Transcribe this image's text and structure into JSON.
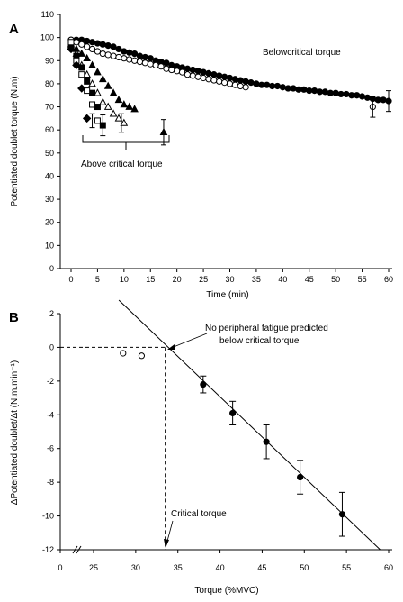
{
  "chart_data": [
    {
      "panel": "A",
      "type": "scatter",
      "title": "",
      "xlabel": "Time (min)",
      "ylabel": "Potentiated doublet torque (N.m)",
      "xlim": [
        0,
        60
      ],
      "ylim": [
        0,
        110
      ],
      "xticks": [
        "0",
        "5",
        "10",
        "15",
        "20",
        "25",
        "30",
        "35",
        "40",
        "45",
        "50",
        "55",
        "60"
      ],
      "yticks": [
        "0",
        "10",
        "20",
        "30",
        "40",
        "50",
        "60",
        "70",
        "80",
        "90",
        "100",
        "110"
      ],
      "annotations": {
        "below": "Belowcritical torque",
        "above": "Above critical torque"
      },
      "series": [
        {
          "marker": "filled-circle",
          "x": [
            0,
            1,
            2,
            3,
            4,
            5,
            6,
            7,
            8,
            9,
            10,
            11,
            12,
            13,
            14,
            15,
            16,
            17,
            18,
            19,
            20,
            21,
            22,
            23,
            24,
            25,
            26,
            27,
            28,
            29,
            30,
            31,
            32,
            33,
            34,
            35,
            36,
            37,
            38,
            39,
            40,
            41,
            42,
            43,
            44,
            45,
            46,
            47,
            48,
            49,
            50,
            51,
            52,
            53,
            54,
            55,
            56,
            57,
            58,
            59,
            60
          ],
          "y": [
            99,
            99,
            99,
            98.5,
            98,
            97.5,
            97,
            96.5,
            96,
            95,
            94,
            93.5,
            93,
            92,
            91.5,
            91,
            90,
            89.5,
            89,
            88,
            87.5,
            87,
            86.5,
            86,
            85.5,
            85,
            84.5,
            84,
            83.5,
            83,
            82.5,
            82,
            81.5,
            81,
            80.5,
            80,
            79.5,
            79.5,
            79,
            79,
            78.5,
            78,
            78,
            77.5,
            77.5,
            77,
            77,
            76.5,
            76.5,
            76,
            76,
            75.5,
            75.5,
            75,
            75,
            74.5,
            74,
            73.5,
            73,
            73,
            72.5
          ]
        },
        {
          "marker": "open-circle",
          "x": [
            0,
            1,
            2,
            3,
            4,
            5,
            6,
            7,
            8,
            9,
            10,
            11,
            12,
            13,
            14,
            15,
            16,
            17,
            18,
            19,
            20,
            21,
            22,
            23,
            24,
            25,
            26,
            27,
            28,
            29,
            30,
            31,
            32,
            33,
            57
          ],
          "y": [
            99,
            98,
            97,
            96,
            95,
            94,
            93,
            92.5,
            92,
            91.5,
            91,
            90.5,
            90,
            89.5,
            89,
            88.5,
            88,
            87.5,
            86.5,
            86,
            85.5,
            85,
            84,
            83.5,
            83,
            82.5,
            82,
            81.5,
            81,
            80.5,
            80,
            79.5,
            79,
            78.5,
            70
          ]
        },
        {
          "marker": "filled-triangle",
          "x": [
            0,
            1,
            2,
            3,
            4,
            5,
            6,
            7,
            8,
            9,
            10,
            11,
            12,
            17.5
          ],
          "y": [
            96,
            95,
            93,
            91,
            88,
            85,
            82,
            79,
            76,
            73,
            71,
            70,
            69,
            59
          ]
        },
        {
          "marker": "open-triangle",
          "x": [
            0,
            1,
            2,
            3,
            4,
            5,
            6,
            7,
            8,
            9,
            10
          ],
          "y": [
            97,
            93,
            88,
            84,
            80,
            76,
            72,
            70,
            67,
            65,
            63
          ]
        },
        {
          "marker": "filled-square",
          "x": [
            0,
            1,
            2,
            3,
            4,
            5,
            6
          ],
          "y": [
            97,
            92,
            87,
            81,
            76,
            70,
            62
          ]
        },
        {
          "marker": "open-square",
          "x": [
            0,
            1,
            2,
            3,
            4,
            5
          ],
          "y": [
            98,
            90,
            84,
            77,
            71,
            64
          ]
        },
        {
          "marker": "filled-diamond",
          "x": [
            0,
            1,
            2,
            3
          ],
          "y": [
            95,
            88,
            78,
            65
          ]
        }
      ]
    },
    {
      "panel": "B",
      "type": "scatter",
      "title": "",
      "xlabel": "Torque (%MVC)",
      "ylabel": "ΔPotentiated doublet/Δt (N.m.min⁻¹)",
      "xlim": [
        20,
        60
      ],
      "ylim": [
        -12,
        2
      ],
      "xticks": [
        "0",
        "25",
        "30",
        "35",
        "40",
        "45",
        "50",
        "55",
        "60"
      ],
      "yticks": [
        "2",
        "0",
        "-2",
        "-4",
        "-6",
        "-8",
        "-10",
        "-12"
      ],
      "critical_torque": 33.5,
      "annotations": {
        "top": [
          "No peripheral fatigue predicted",
          "below critical torque"
        ],
        "critical": "Critical torque"
      },
      "series": [
        {
          "marker": "filled-circle",
          "x": [
            38,
            41.5,
            45.5,
            49.5,
            54.5
          ],
          "y": [
            -2.2,
            -3.9,
            -5.6,
            -7.7,
            -9.9
          ],
          "err": [
            0.5,
            0.7,
            1.0,
            1.0,
            1.3
          ]
        },
        {
          "marker": "open-circle",
          "x": [
            28.5,
            30.7
          ],
          "y": [
            -0.35,
            -0.5
          ]
        }
      ],
      "fit_line": {
        "x": [
          28,
          59
        ],
        "y": [
          2.8,
          -12
        ]
      }
    }
  ]
}
